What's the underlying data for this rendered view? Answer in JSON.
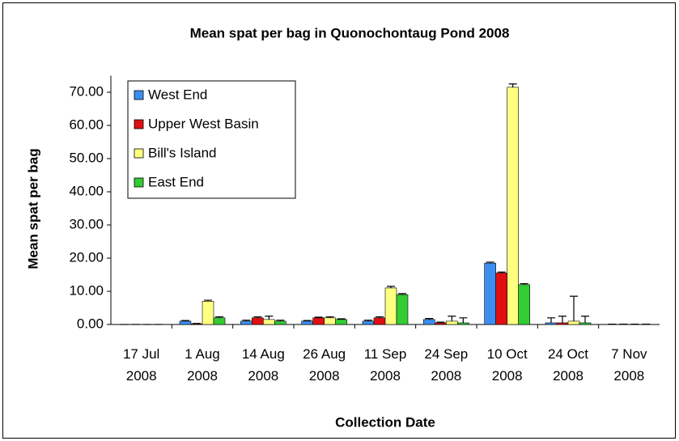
{
  "chart_data": {
    "type": "bar",
    "title": "Mean spat per bag in Quonochontaug Pond 2008",
    "x_label": "Collection Date",
    "y_label": "Mean spat per bag",
    "categories": [
      "17 Jul 2008",
      "1 Aug 2008",
      "14 Aug 2008",
      "26 Aug 2008",
      "11 Sep 2008",
      "24 Sep 2008",
      "10 Oct 2008",
      "24 Oct 2008",
      "7 Nov 2008"
    ],
    "series": [
      {
        "name": "West End",
        "color": "#3d8ef0",
        "values": [
          0,
          1.0,
          1.0,
          1.0,
          1.0,
          1.5,
          18.5,
          0.5,
          0
        ],
        "errors": [
          0,
          0.2,
          0.3,
          0.2,
          0.3,
          0.3,
          0.3,
          1.5,
          0.1
        ]
      },
      {
        "name": "Upper West Basin",
        "color": "#e01010",
        "values": [
          0,
          0.2,
          2.0,
          2.0,
          2.0,
          0.5,
          15.5,
          0.5,
          0
        ],
        "errors": [
          0,
          0.1,
          0.3,
          0.2,
          0.3,
          0.2,
          0.3,
          2.0,
          0.1
        ]
      },
      {
        "name": "Bill's Island",
        "color": "#ffff80",
        "values": [
          0,
          7.0,
          1.5,
          2.0,
          11.0,
          1.0,
          71.5,
          1.0,
          0
        ],
        "errors": [
          0,
          0.3,
          1.0,
          0.3,
          0.5,
          1.5,
          1.0,
          7.5,
          0.1
        ]
      },
      {
        "name": "East End",
        "color": "#33cc33",
        "values": [
          0,
          2.0,
          1.0,
          1.5,
          9.0,
          0.5,
          12.0,
          0.5,
          0
        ],
        "errors": [
          0,
          0.3,
          0.3,
          0.2,
          0.3,
          1.5,
          0.3,
          2.0,
          0.1
        ]
      }
    ],
    "ylim": [
      0,
      75
    ],
    "yticks": [
      {
        "value": 0,
        "label": "0.00"
      },
      {
        "value": 10,
        "label": "10.00"
      },
      {
        "value": 20,
        "label": "20.00"
      },
      {
        "value": 30,
        "label": "30.00"
      },
      {
        "value": 40,
        "label": "40.00"
      },
      {
        "value": 50,
        "label": "50.00"
      },
      {
        "value": 60,
        "label": "60.00"
      },
      {
        "value": 70,
        "label": "70.00"
      }
    ],
    "legend": "upper left"
  }
}
